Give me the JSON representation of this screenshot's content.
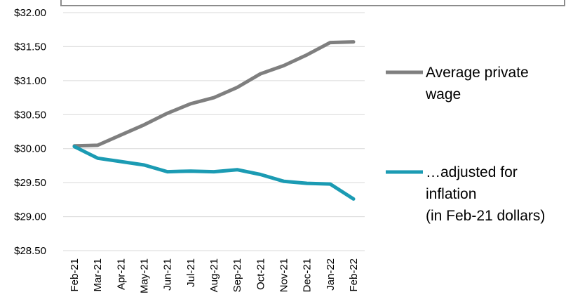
{
  "chart_data": {
    "type": "line",
    "title": "",
    "xlabel": "",
    "ylabel": "",
    "ylim": [
      28.5,
      32.0
    ],
    "y_ticks": [
      "$28.50",
      "$29.00",
      "$29.50",
      "$30.00",
      "$30.50",
      "$31.00",
      "$31.50",
      "$32.00"
    ],
    "y_tick_values": [
      28.5,
      29.0,
      29.5,
      30.0,
      30.5,
      31.0,
      31.5,
      32.0
    ],
    "grid": "horizontal",
    "legend_position": "right",
    "categories": [
      "Feb-21",
      "Mar-21",
      "Apr-21",
      "May-21",
      "Jun-21",
      "Jul-21",
      "Aug-21",
      "Sep-21",
      "Oct-21",
      "Nov-21",
      "Dec-21",
      "Jan-22",
      "Feb-22"
    ],
    "series": [
      {
        "name": "Average private wage",
        "legend_lines": [
          "Average private",
          "wage"
        ],
        "color": "#7f7f7f",
        "values": [
          30.04,
          30.05,
          30.2,
          30.35,
          30.52,
          30.66,
          30.75,
          30.9,
          31.1,
          31.22,
          31.38,
          31.56,
          31.57
        ]
      },
      {
        "name": "…adjusted for inflation (in Feb-21 dollars)",
        "legend_lines": [
          "…adjusted for",
          "inflation",
          "(in Feb-21 dollars)"
        ],
        "color": "#1b9bb3",
        "values": [
          30.03,
          29.86,
          29.81,
          29.76,
          29.66,
          29.67,
          29.66,
          29.69,
          29.62,
          29.52,
          29.49,
          29.48,
          29.26
        ]
      }
    ]
  }
}
